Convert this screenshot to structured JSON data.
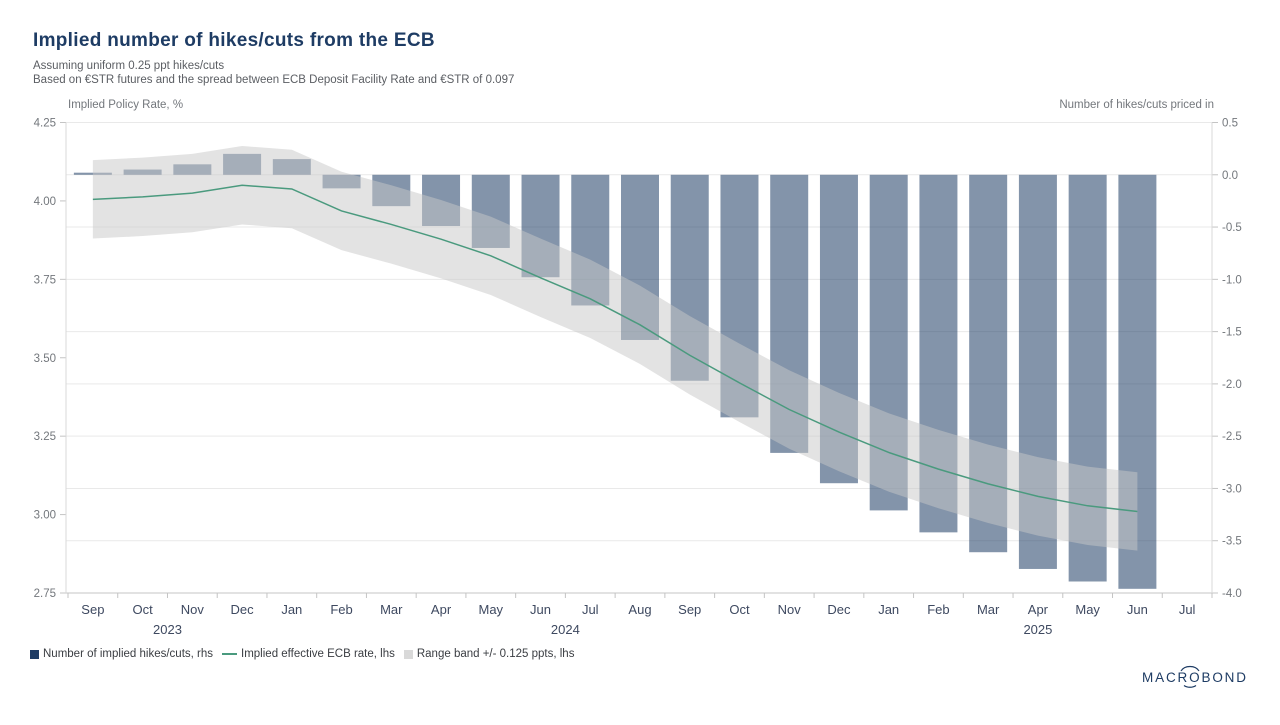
{
  "header": {
    "title": "Implied number of hikes/cuts from the ECB",
    "subtitle1": "Assuming uniform 0.25 ppt hikes/cuts",
    "subtitle2": "Based on €STR futures and the spread between ECB Deposit Facility Rate and €STR of 0.097"
  },
  "chart_data": {
    "type": "bar",
    "subtype": "bar+line+band combo",
    "categories": [
      "Sep 2023",
      "Oct 2023",
      "Nov 2023",
      "Dec 2023",
      "Jan 2024",
      "Feb 2024",
      "Mar 2024",
      "Apr 2024",
      "May 2024",
      "Jun 2024",
      "Jul 2024",
      "Aug 2024",
      "Sep 2024",
      "Oct 2024",
      "Nov 2024",
      "Dec 2024",
      "Jan 2025",
      "Feb 2025",
      "Mar 2025",
      "Apr 2025",
      "May 2025",
      "Jun 2025",
      "Jul 2025"
    ],
    "month_labels": [
      "Sep",
      "Oct",
      "Nov",
      "Dec",
      "Jan",
      "Feb",
      "Mar",
      "Apr",
      "May",
      "Jun",
      "Jul",
      "Aug",
      "Sep",
      "Oct",
      "Nov",
      "Dec",
      "Jan",
      "Feb",
      "Mar",
      "Apr",
      "May",
      "Jun",
      "Jul"
    ],
    "year_groups": [
      {
        "label": "2023",
        "from": 0,
        "to": 3
      },
      {
        "label": "2024",
        "from": 4,
        "to": 15
      },
      {
        "label": "2025",
        "from": 16,
        "to": 22
      }
    ],
    "series": [
      {
        "name": "Number of implied hikes/cuts, rhs",
        "type": "bar",
        "axis": "right",
        "color": "#1e3c64",
        "opacity": 0.55,
        "values": [
          0.02,
          0.05,
          0.1,
          0.2,
          0.15,
          -0.13,
          -0.3,
          -0.49,
          -0.7,
          -0.98,
          -1.25,
          -1.58,
          -1.97,
          -2.32,
          -2.66,
          -2.95,
          -3.21,
          -3.42,
          -3.61,
          -3.77,
          -3.89,
          -3.96,
          null
        ]
      },
      {
        "name": "Implied effective ECB rate, lhs",
        "type": "line",
        "axis": "left",
        "color": "#4a9a7e",
        "values": [
          4.005,
          4.013,
          4.025,
          4.05,
          4.038,
          3.968,
          3.925,
          3.878,
          3.825,
          3.755,
          3.688,
          3.605,
          3.508,
          3.42,
          3.335,
          3.263,
          3.198,
          3.145,
          3.098,
          3.058,
          3.028,
          3.01,
          null
        ]
      },
      {
        "name": "Range band +/- 0.125 ppts, lhs",
        "type": "band",
        "axis": "left",
        "color": "#c8c8c8",
        "opacity": 0.5,
        "halfwidth": 0.125
      }
    ],
    "left_axis": {
      "title": "Implied Policy Rate, %",
      "min": 2.75,
      "max": 4.25,
      "tick_labels": [
        "4.25",
        "4.00",
        "3.75",
        "3.50",
        "3.25",
        "3.00",
        "2.75"
      ]
    },
    "right_axis": {
      "title": "Number of hikes/cuts priced in",
      "min": -4.0,
      "max": 0.5,
      "tick_labels": [
        "0.5",
        "0.0",
        "-0.5",
        "-1.0",
        "-1.5",
        "-2.0",
        "-2.5",
        "-3.0",
        "-3.5",
        "-4.0"
      ]
    },
    "grid": "horizontal, at right-axis ticks",
    "legend_position": "bottom-left"
  },
  "legend": {
    "items": [
      {
        "label": "Number of implied hikes/cuts, rhs",
        "swatch": "square",
        "color": "#1e3c64"
      },
      {
        "label": "Implied effective ECB rate, lhs",
        "swatch": "line",
        "color": "#4a9a7e"
      },
      {
        "label": "Range band +/- 0.125 ppts, lhs",
        "swatch": "square",
        "color": "#d9d9d9"
      }
    ]
  },
  "brand": {
    "name": "MACROBOND"
  },
  "colors": {
    "title_navy": "#1e3c64",
    "bar_fill_effective": "#8393ac",
    "line_green": "#4a9a7e",
    "band_gray": "#e3e3e3",
    "gridline": "#e9e9e9",
    "axis_frame": "#d9d9d9",
    "tick_mark": "#c4c4c4",
    "month_label": "#3e4960",
    "numeric_label": "#73777c",
    "subtitle_gray": "#5b5e63"
  }
}
